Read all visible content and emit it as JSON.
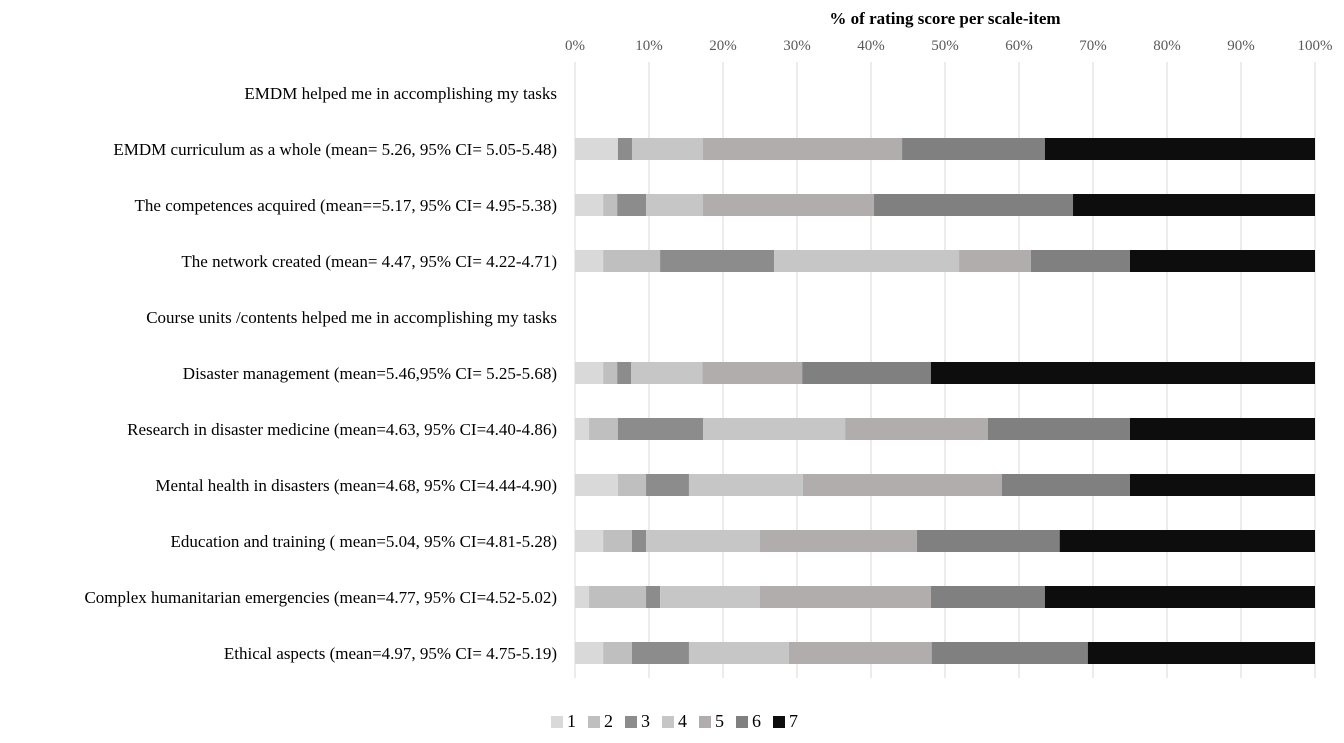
{
  "chart_data": {
    "type": "bar",
    "orientation": "horizontal",
    "stacked": "percent",
    "title": "% of rating score per scale-item",
    "xlim": [
      0,
      100
    ],
    "x_ticks": [
      "0%",
      "10%",
      "20%",
      "30%",
      "40%",
      "50%",
      "60%",
      "70%",
      "80%",
      "90%",
      "100%"
    ],
    "grid": "vertical",
    "legend_position": "bottom",
    "categories": [
      "EMDM helped me in accomplishing my tasks",
      "EMDM curriculum as a whole (mean= 5.26, 95% CI= 5.05-5.48)",
      "The competences acquired (mean==5.17, 95% CI= 4.95-5.38)",
      "The network created (mean= 4.47, 95% CI= 4.22-4.71)",
      "Course units /contents helped me in accomplishing my tasks",
      "Disaster management (mean=5.46,95% CI= 5.25-5.68)",
      "Research in disaster medicine (mean=4.63, 95% CI=4.40-4.86)",
      "Mental health in disasters (mean=4.68, 95% CI=4.44-4.90)",
      "Education and training ( mean=5.04, 95% CI=4.81-5.28)",
      "Complex humanitarian emergencies (mean=4.77, 95% CI=4.52-5.02)",
      "Ethical aspects (mean=4.97, 95% CI= 4.75-5.19)"
    ],
    "series": [
      {
        "name": "1",
        "color": "#d9d9d9",
        "values": [
          0,
          5.8,
          3.8,
          3.8,
          0,
          3.8,
          1.9,
          5.8,
          3.8,
          1.9,
          3.8
        ]
      },
      {
        "name": "2",
        "color": "#bfbfbf",
        "values": [
          0,
          0,
          1.9,
          7.7,
          0,
          1.9,
          3.9,
          3.8,
          3.9,
          7.7,
          3.9
        ]
      },
      {
        "name": "3",
        "color": "#8c8c8c",
        "values": [
          0,
          1.9,
          3.9,
          15.4,
          0,
          1.9,
          11.5,
          5.8,
          1.9,
          1.9,
          7.7
        ]
      },
      {
        "name": "4",
        "color": "#c6c6c6",
        "values": [
          0,
          9.6,
          7.7,
          25.0,
          0,
          9.6,
          19.2,
          15.4,
          15.4,
          13.5,
          13.5
        ]
      },
      {
        "name": "5",
        "color": "#b1adad",
        "values": [
          0,
          26.9,
          23.1,
          9.7,
          0,
          13.5,
          19.3,
          26.9,
          21.2,
          23.1,
          19.3
        ]
      },
      {
        "name": "6",
        "color": "#808080",
        "values": [
          0,
          19.3,
          26.9,
          13.4,
          0,
          17.4,
          19.2,
          17.3,
          19.3,
          15.4,
          21.1
        ]
      },
      {
        "name": "7",
        "color": "#0d0d0d",
        "values": [
          0,
          36.5,
          32.7,
          25.0,
          0,
          51.9,
          25.0,
          25.0,
          34.5,
          36.5,
          30.7
        ]
      }
    ]
  }
}
